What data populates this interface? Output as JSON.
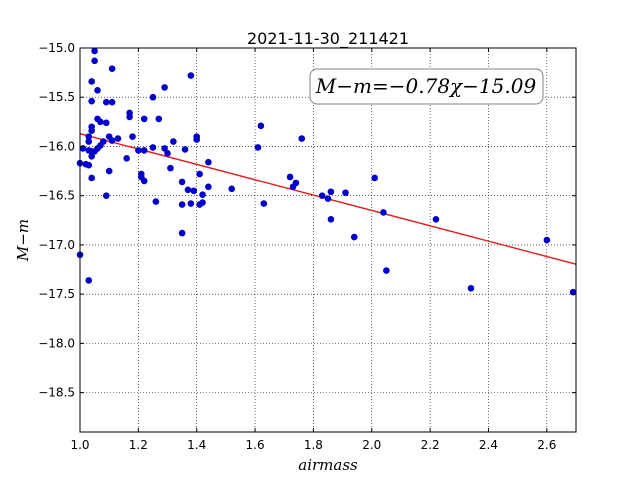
{
  "chart_data": {
    "type": "scatter",
    "title": "2021-11-30_211421",
    "xlabel": "airmass",
    "ylabel": "M−m",
    "xlim": [
      1.0,
      2.7
    ],
    "ylim": [
      -15.0,
      -18.9
    ],
    "y_inverted": true,
    "xticks": [
      1.0,
      1.2,
      1.4,
      1.6,
      1.8,
      2.0,
      2.2,
      2.4,
      2.6
    ],
    "xtick_labels": [
      "1.0",
      "1.2",
      "1.4",
      "1.6",
      "1.8",
      "2.0",
      "2.2",
      "2.4",
      "2.6"
    ],
    "yticks": [
      -15.0,
      -15.5,
      -16.0,
      -16.5,
      -17.0,
      -17.5,
      -18.0,
      -18.5
    ],
    "ytick_labels": [
      "−15.0",
      "−15.5",
      "−16.0",
      "−16.5",
      "−17.0",
      "−17.5",
      "−18.0",
      "−18.5"
    ],
    "grid": true,
    "annotation": "M−m=−0.78χ−15.09",
    "fit": {
      "slope": -0.78,
      "intercept": -15.09,
      "color": "#e31a1c"
    },
    "point_color": "#0000cc",
    "points": [
      [
        1.0,
        -17.1
      ],
      [
        1.0,
        -16.17
      ],
      [
        1.01,
        -16.02
      ],
      [
        1.02,
        -16.18
      ],
      [
        1.03,
        -16.04
      ],
      [
        1.03,
        -16.19
      ],
      [
        1.03,
        -17.36
      ],
      [
        1.03,
        -15.9
      ],
      [
        1.03,
        -15.95
      ],
      [
        1.04,
        -15.34
      ],
      [
        1.04,
        -15.54
      ],
      [
        1.04,
        -15.8
      ],
      [
        1.04,
        -15.84
      ],
      [
        1.04,
        -16.05
      ],
      [
        1.04,
        -16.1
      ],
      [
        1.04,
        -16.32
      ],
      [
        1.05,
        -15.03
      ],
      [
        1.05,
        -15.13
      ],
      [
        1.05,
        -16.05
      ],
      [
        1.06,
        -15.43
      ],
      [
        1.06,
        -15.72
      ],
      [
        1.06,
        -16.02
      ],
      [
        1.07,
        -15.75
      ],
      [
        1.07,
        -15.99
      ],
      [
        1.08,
        -15.95
      ],
      [
        1.09,
        -16.5
      ],
      [
        1.09,
        -15.55
      ],
      [
        1.09,
        -15.76
      ],
      [
        1.1,
        -16.25
      ],
      [
        1.1,
        -15.9
      ],
      [
        1.11,
        -15.55
      ],
      [
        1.11,
        -15.94
      ],
      [
        1.11,
        -15.21
      ],
      [
        1.13,
        -15.92
      ],
      [
        1.16,
        -16.12
      ],
      [
        1.17,
        -15.7
      ],
      [
        1.17,
        -15.66
      ],
      [
        1.18,
        -15.9
      ],
      [
        1.2,
        -16.04
      ],
      [
        1.21,
        -16.31
      ],
      [
        1.21,
        -16.28
      ],
      [
        1.22,
        -15.72
      ],
      [
        1.22,
        -16.35
      ],
      [
        1.22,
        -16.04
      ],
      [
        1.25,
        -15.5
      ],
      [
        1.25,
        -16.01
      ],
      [
        1.26,
        -16.56
      ],
      [
        1.27,
        -15.72
      ],
      [
        1.29,
        -15.4
      ],
      [
        1.29,
        -16.02
      ],
      [
        1.3,
        -16.07
      ],
      [
        1.31,
        -16.22
      ],
      [
        1.32,
        -15.95
      ],
      [
        1.35,
        -16.59
      ],
      [
        1.35,
        -16.88
      ],
      [
        1.35,
        -16.36
      ],
      [
        1.36,
        -16.03
      ],
      [
        1.37,
        -16.44
      ],
      [
        1.38,
        -16.58
      ],
      [
        1.38,
        -15.28
      ],
      [
        1.39,
        -16.45
      ],
      [
        1.4,
        -15.9
      ],
      [
        1.4,
        -15.93
      ],
      [
        1.41,
        -16.59
      ],
      [
        1.41,
        -16.28
      ],
      [
        1.42,
        -16.57
      ],
      [
        1.42,
        -16.49
      ],
      [
        1.44,
        -16.16
      ],
      [
        1.44,
        -16.41
      ],
      [
        1.52,
        -16.43
      ],
      [
        1.61,
        -16.01
      ],
      [
        1.62,
        -15.79
      ],
      [
        1.63,
        -16.58
      ],
      [
        1.72,
        -16.31
      ],
      [
        1.73,
        -16.41
      ],
      [
        1.74,
        -16.37
      ],
      [
        1.76,
        -15.92
      ],
      [
        1.83,
        -16.5
      ],
      [
        1.85,
        -16.53
      ],
      [
        1.86,
        -16.46
      ],
      [
        1.86,
        -16.74
      ],
      [
        1.91,
        -16.47
      ],
      [
        1.94,
        -16.92
      ],
      [
        2.01,
        -16.32
      ],
      [
        2.04,
        -16.67
      ],
      [
        2.05,
        -17.26
      ],
      [
        2.22,
        -16.74
      ],
      [
        2.34,
        -17.44
      ],
      [
        2.6,
        -16.95
      ],
      [
        2.69,
        -17.48
      ]
    ]
  }
}
